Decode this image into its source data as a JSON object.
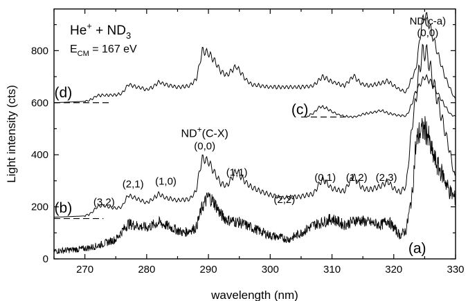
{
  "chart_data": {
    "type": "line",
    "xlabel": "wavelength (nm)",
    "ylabel": "Light intensity (cts)",
    "xlim": [
      265,
      330
    ],
    "ylim": [
      0,
      960
    ],
    "x_ticks": [
      270,
      280,
      290,
      300,
      310,
      320,
      330
    ],
    "y_ticks": [
      0,
      200,
      400,
      600,
      800
    ],
    "grid": false,
    "legend": {
      "reaction_main": "He",
      "reaction_sup": "+",
      "reaction_plus": " + ND",
      "reaction_sub": "3",
      "energy_main": "E",
      "energy_sub": "CM",
      "energy_value": " = 167 eV"
    },
    "series": [
      {
        "name": "(d)",
        "baseline": 600,
        "x": [
          265,
          270,
          271,
          272,
          275,
          276,
          277,
          280,
          281,
          282,
          283,
          285,
          287,
          288,
          288.5,
          289,
          290,
          291,
          292,
          293,
          294,
          294.5,
          295,
          296,
          297,
          300,
          305,
          307,
          308,
          308.5,
          309,
          310,
          312,
          313,
          313.5,
          314,
          315,
          316,
          318,
          319,
          320,
          321,
          322,
          323,
          323.5,
          324,
          324.5,
          325,
          325.5,
          326,
          327,
          328,
          329,
          330
        ],
        "y": [
          600,
          605,
          612,
          628,
          630,
          635,
          670,
          650,
          660,
          680,
          670,
          660,
          665,
          690,
          740,
          800,
          790,
          760,
          720,
          705,
          730,
          740,
          725,
          690,
          670,
          660,
          660,
          665,
          690,
          700,
          695,
          680,
          665,
          690,
          705,
          690,
          670,
          665,
          675,
          685,
          665,
          650,
          640,
          700,
          720,
          800,
          900,
          940,
          920,
          880,
          800,
          720,
          660,
          610
        ]
      },
      {
        "name": "(b)",
        "baseline": 155,
        "x": [
          265,
          270,
          271,
          272,
          273,
          275,
          276,
          277,
          280,
          281,
          282,
          283,
          285,
          287,
          288,
          288.5,
          289,
          290,
          291,
          292,
          293,
          294,
          294.5,
          295,
          296,
          297,
          300,
          302,
          305,
          307,
          308,
          308.5,
          309,
          310,
          312,
          313,
          313.5,
          314,
          315,
          316,
          318,
          319,
          320,
          321,
          322,
          323,
          323.5,
          324,
          324.5,
          325,
          325.5,
          326,
          327,
          328,
          329,
          330
        ],
        "y": [
          160,
          165,
          175,
          200,
          205,
          195,
          200,
          245,
          215,
          230,
          250,
          235,
          225,
          230,
          260,
          330,
          385,
          375,
          330,
          290,
          280,
          320,
          340,
          325,
          295,
          275,
          245,
          235,
          240,
          250,
          290,
          305,
          295,
          270,
          260,
          300,
          320,
          300,
          270,
          265,
          280,
          300,
          270,
          255,
          280,
          520,
          600,
          700,
          780,
          800,
          780,
          720,
          620,
          520,
          420,
          300
        ]
      },
      {
        "name": "(a)",
        "baseline": 20,
        "x": [
          265,
          268,
          270,
          272,
          275,
          277,
          280,
          282,
          284,
          286,
          288,
          289,
          290,
          291,
          292,
          293,
          295,
          297,
          300,
          303,
          305,
          307,
          309,
          310,
          312,
          314,
          316,
          318,
          319,
          320,
          321,
          322,
          323,
          323.5,
          324,
          325,
          325.5,
          326,
          327,
          328,
          329,
          330
        ],
        "y": [
          30,
          35,
          40,
          50,
          75,
          135,
          120,
          140,
          120,
          100,
          120,
          200,
          240,
          215,
          170,
          150,
          140,
          120,
          90,
          75,
          100,
          130,
          145,
          155,
          130,
          150,
          140,
          130,
          150,
          120,
          90,
          110,
          250,
          420,
          480,
          500,
          480,
          420,
          360,
          320,
          260,
          230
        ]
      },
      {
        "name": "(c)",
        "baseline": 545,
        "x": [
          306,
          307,
          308,
          309,
          310,
          311,
          312,
          313,
          314,
          315,
          316,
          317,
          318,
          319,
          320,
          321,
          322,
          322.5,
          323,
          323.5,
          324,
          325,
          326,
          327,
          328,
          329,
          330
        ],
        "y": [
          548,
          560,
          585,
          580,
          565,
          555,
          548,
          545,
          548,
          555,
          560,
          565,
          570,
          560,
          555,
          550,
          550,
          570,
          600,
          640,
          660,
          700,
          680,
          640,
          600,
          560,
          545
        ]
      }
    ],
    "reference_lines": [
      {
        "series": "(d)",
        "y": 600,
        "x_start": 265,
        "x_end": 274
      },
      {
        "series": "(b)",
        "y": 155,
        "x_start": 265,
        "x_end": 273
      },
      {
        "series": "(c)",
        "y": 545,
        "x_start": 305,
        "x_end": 312
      }
    ],
    "annotations": [
      {
        "text": "(d)",
        "x": 266.5,
        "y": 620,
        "size": "large"
      },
      {
        "text": "(b)",
        "x": 266.5,
        "y": 178,
        "size": "large"
      },
      {
        "text": "(c)",
        "x": 304.8,
        "y": 555,
        "size": "large"
      },
      {
        "text": "(a)",
        "x": 323.8,
        "y": 22,
        "size": "large"
      },
      {
        "text": "ND(c-a)",
        "x": 325.5,
        "y": 900,
        "size": "normal"
      },
      {
        "text": "(0,0)",
        "x": 325.5,
        "y": 855,
        "size": "normal"
      },
      {
        "text": "(0,0)",
        "x": 289.4,
        "y": 420,
        "size": "normal"
      },
      {
        "text": "(1,1)",
        "x": 294.6,
        "y": 320,
        "size": "normal"
      },
      {
        "text": "(2,2)",
        "x": 302.3,
        "y": 215,
        "size": "normal"
      },
      {
        "text": "(0,1)",
        "x": 308.9,
        "y": 300,
        "size": "normal"
      },
      {
        "text": "(1,2)",
        "x": 314.0,
        "y": 300,
        "size": "normal"
      },
      {
        "text": "(2,3)",
        "x": 318.8,
        "y": 300,
        "size": "normal"
      },
      {
        "text": "(3,2)",
        "x": 273.1,
        "y": 205,
        "size": "normal"
      },
      {
        "text": "(2,1)",
        "x": 277.8,
        "y": 275,
        "size": "normal"
      },
      {
        "text": "(1,0)",
        "x": 283.1,
        "y": 285,
        "size": "normal"
      }
    ],
    "band_label": {
      "main": "ND",
      "sup": "+",
      "rest": "(C-X)",
      "x": 289.4,
      "y": 468
    },
    "colors": {
      "line": "#000000",
      "dash": "#000000",
      "background": "#ffffff"
    }
  }
}
